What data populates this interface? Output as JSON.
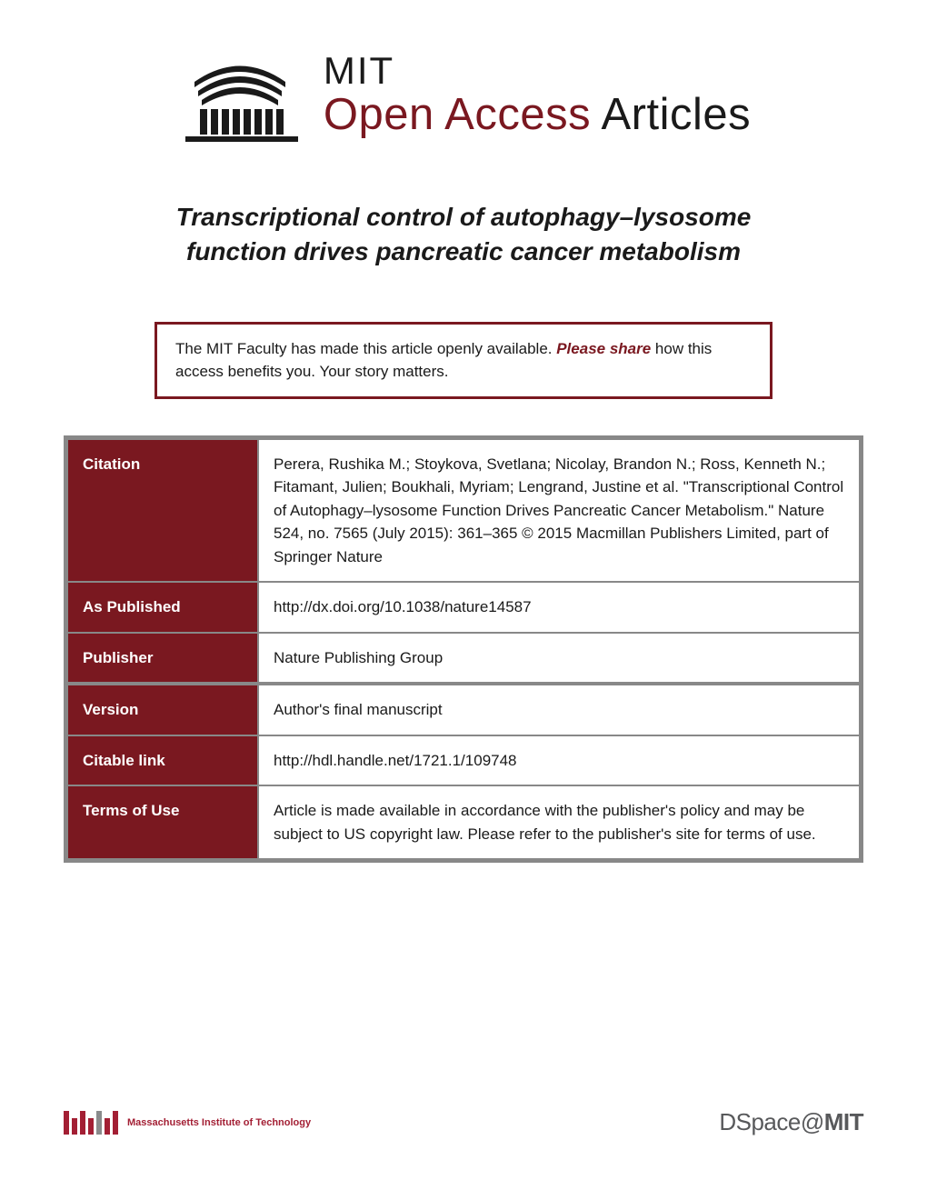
{
  "logo": {
    "mit": "MIT",
    "open_access": "Open Access",
    "articles": " Articles"
  },
  "title": "Transcriptional control of autophagy–lysosome function drives pancreatic cancer metabolism",
  "notice": {
    "pre": "The MIT Faculty has made this article openly available. ",
    "link": "Please share",
    "post": " how this access benefits you. Your story matters."
  },
  "rows": [
    {
      "label": "Citation",
      "value": "Perera, Rushika M.; Stoykova, Svetlana; Nicolay, Brandon N.; Ross, Kenneth N.; Fitamant, Julien; Boukhali, Myriam; Lengrand, Justine et al. \"Transcriptional Control of Autophagy–lysosome Function Drives Pancreatic Cancer Metabolism.\" Nature 524, no. 7565 (July 2015): 361–365 © 2015 Macmillan Publishers Limited, part of Springer Nature",
      "group_end": false
    },
    {
      "label": "As Published",
      "value": "http://dx.doi.org/10.1038/nature14587",
      "group_end": false
    },
    {
      "label": "Publisher",
      "value": "Nature Publishing Group",
      "group_end": true
    },
    {
      "label": "Version",
      "value": "Author's final manuscript",
      "group_end": false
    },
    {
      "label": "Citable link",
      "value": "http://hdl.handle.net/1721.1/109748",
      "group_end": false
    },
    {
      "label": "Terms of Use",
      "value": "Article is made available in accordance with the publisher's policy and may be subject to US copyright law. Please refer to the publisher's site for terms of use.",
      "group_end": false
    }
  ],
  "footer": {
    "institution": "Massachusetts Institute of Technology",
    "dspace_d": "DSpace",
    "dspace_at": "@",
    "dspace_mit": "MIT"
  },
  "colors": {
    "brand": "#7a1820",
    "table_border": "#888888",
    "text": "#1a1a1a",
    "footer_gray": "#58595b",
    "mit_red": "#a31f34"
  }
}
